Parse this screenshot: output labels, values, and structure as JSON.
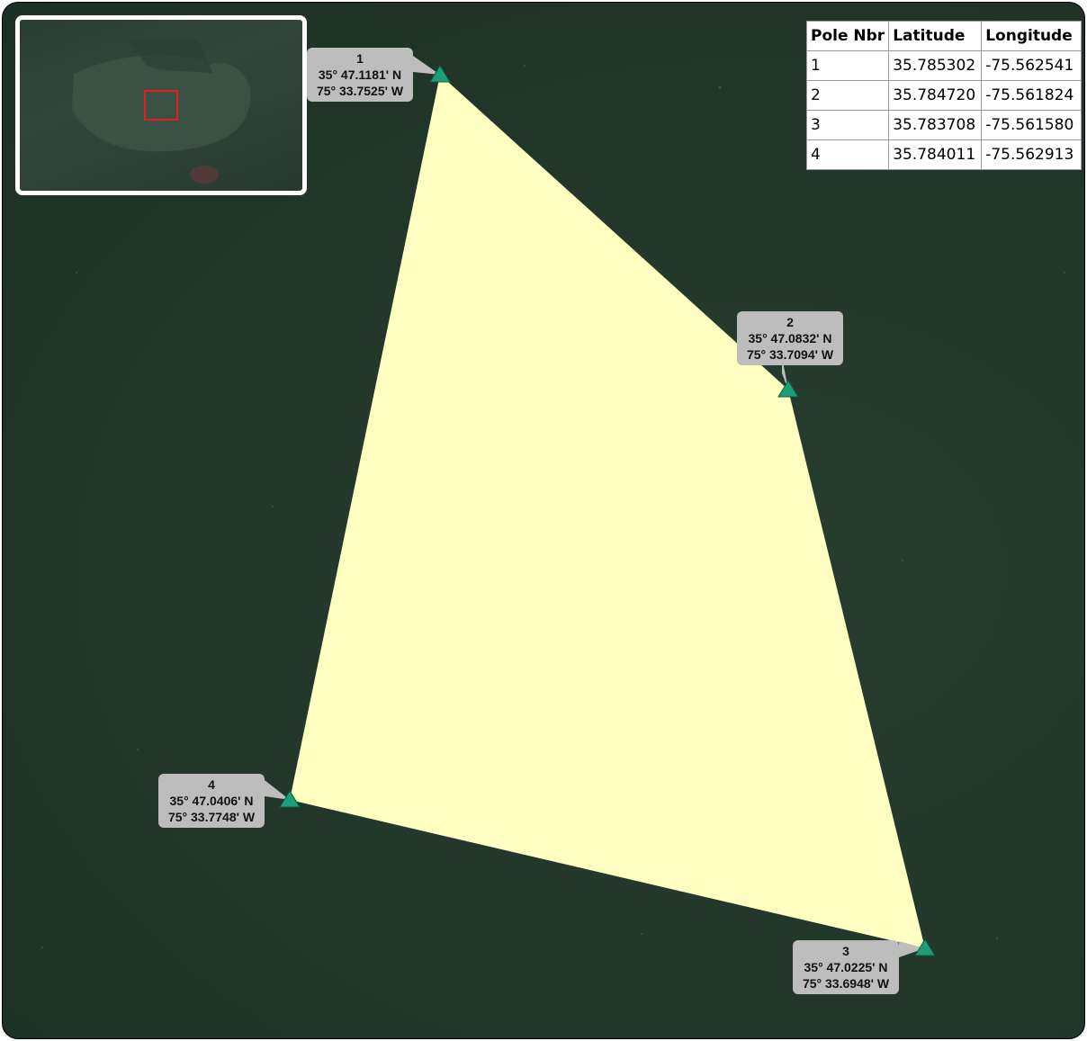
{
  "map": {
    "polygon_fill": "#ffffc2",
    "marker_color": "#1e9e78",
    "callout_color": "#bdbdbd",
    "marker_icon": "triangle-marker-icon"
  },
  "poles": [
    {
      "nbr": "1",
      "lat_dm": "35° 47.1181' N",
      "lon_dm": "75° 33.7525' W",
      "latitude": "35.785302",
      "longitude": "-75.562541"
    },
    {
      "nbr": "2",
      "lat_dm": "35° 47.0832' N",
      "lon_dm": "75° 33.7094' W",
      "latitude": "35.784720",
      "longitude": "-75.561824"
    },
    {
      "nbr": "3",
      "lat_dm": "35° 47.0225' N",
      "lon_dm": "75° 33.6948' W",
      "latitude": "35.783708",
      "longitude": "-75.561580"
    },
    {
      "nbr": "4",
      "lat_dm": "35° 47.0406' N",
      "lon_dm": "75° 33.7748' W",
      "latitude": "35.784011",
      "longitude": "-75.562913"
    }
  ],
  "table": {
    "headers": [
      "Pole Nbr",
      "Latitude",
      "Longitude"
    ]
  },
  "inset": {
    "highlight_color": "#e02020"
  }
}
